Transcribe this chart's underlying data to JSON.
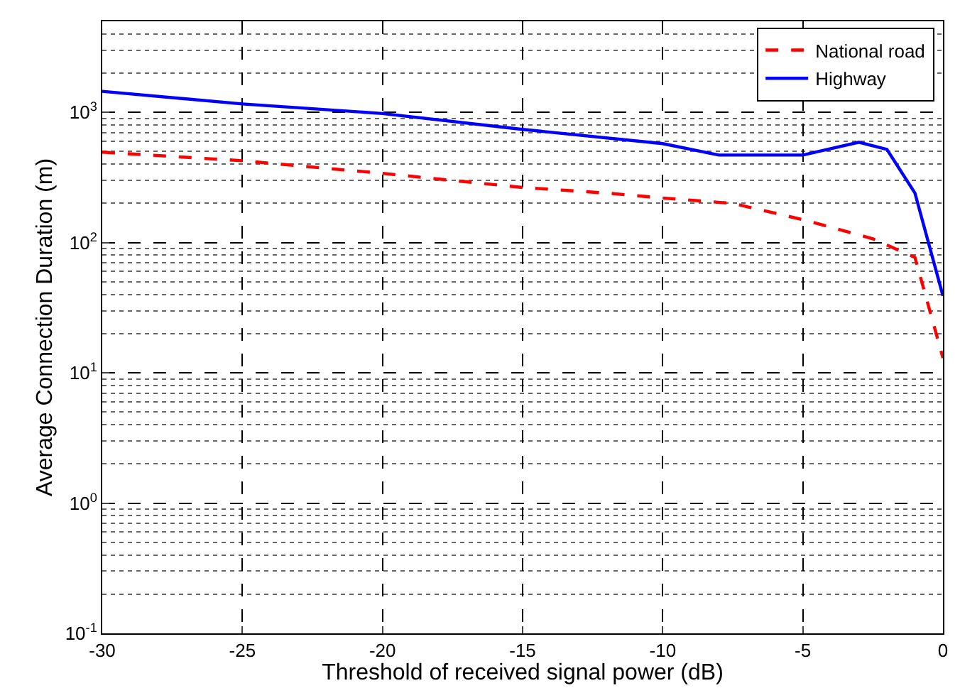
{
  "chart_data": {
    "type": "line",
    "xlabel": "Threshold of received signal power (dB)",
    "ylabel": "Average Connection Duration (m)",
    "log": "y",
    "grid": true,
    "legend": "top right",
    "xlim": [
      -30,
      0
    ],
    "xticks": [
      -30,
      -25,
      -20,
      -15,
      -10,
      -5,
      0
    ],
    "ylim": [
      0.1,
      5000
    ],
    "yticks": [
      {
        "value": 0.1,
        "label": "10$^{-1}$"
      },
      {
        "value": 1,
        "label": "10$^{0}$"
      },
      {
        "value": 10,
        "label": "10$^{1}$"
      },
      {
        "value": 100,
        "label": "10$^{2}$"
      },
      {
        "value": 1000,
        "label": "10$^{3}$"
      }
    ],
    "series": [
      {
        "name": "National road",
        "color": "#ff0000",
        "line_style": "dashed",
        "x": [
          -30,
          -25,
          -20,
          -15,
          -12,
          -10,
          -7.5,
          -5,
          -2.5,
          -1,
          0
        ],
        "values": [
          495,
          425,
          340,
          265,
          240,
          220,
          200,
          150,
          107,
          77,
          13
        ]
      },
      {
        "name": "Highway",
        "color": "#0000ff",
        "line_style": "solid",
        "x": [
          -30,
          -25,
          -20,
          -15,
          -10,
          -8,
          -5,
          -3,
          -2,
          -1,
          0
        ],
        "values": [
          1450,
          1160,
          980,
          740,
          575,
          470,
          470,
          590,
          520,
          240,
          39
        ]
      }
    ]
  }
}
